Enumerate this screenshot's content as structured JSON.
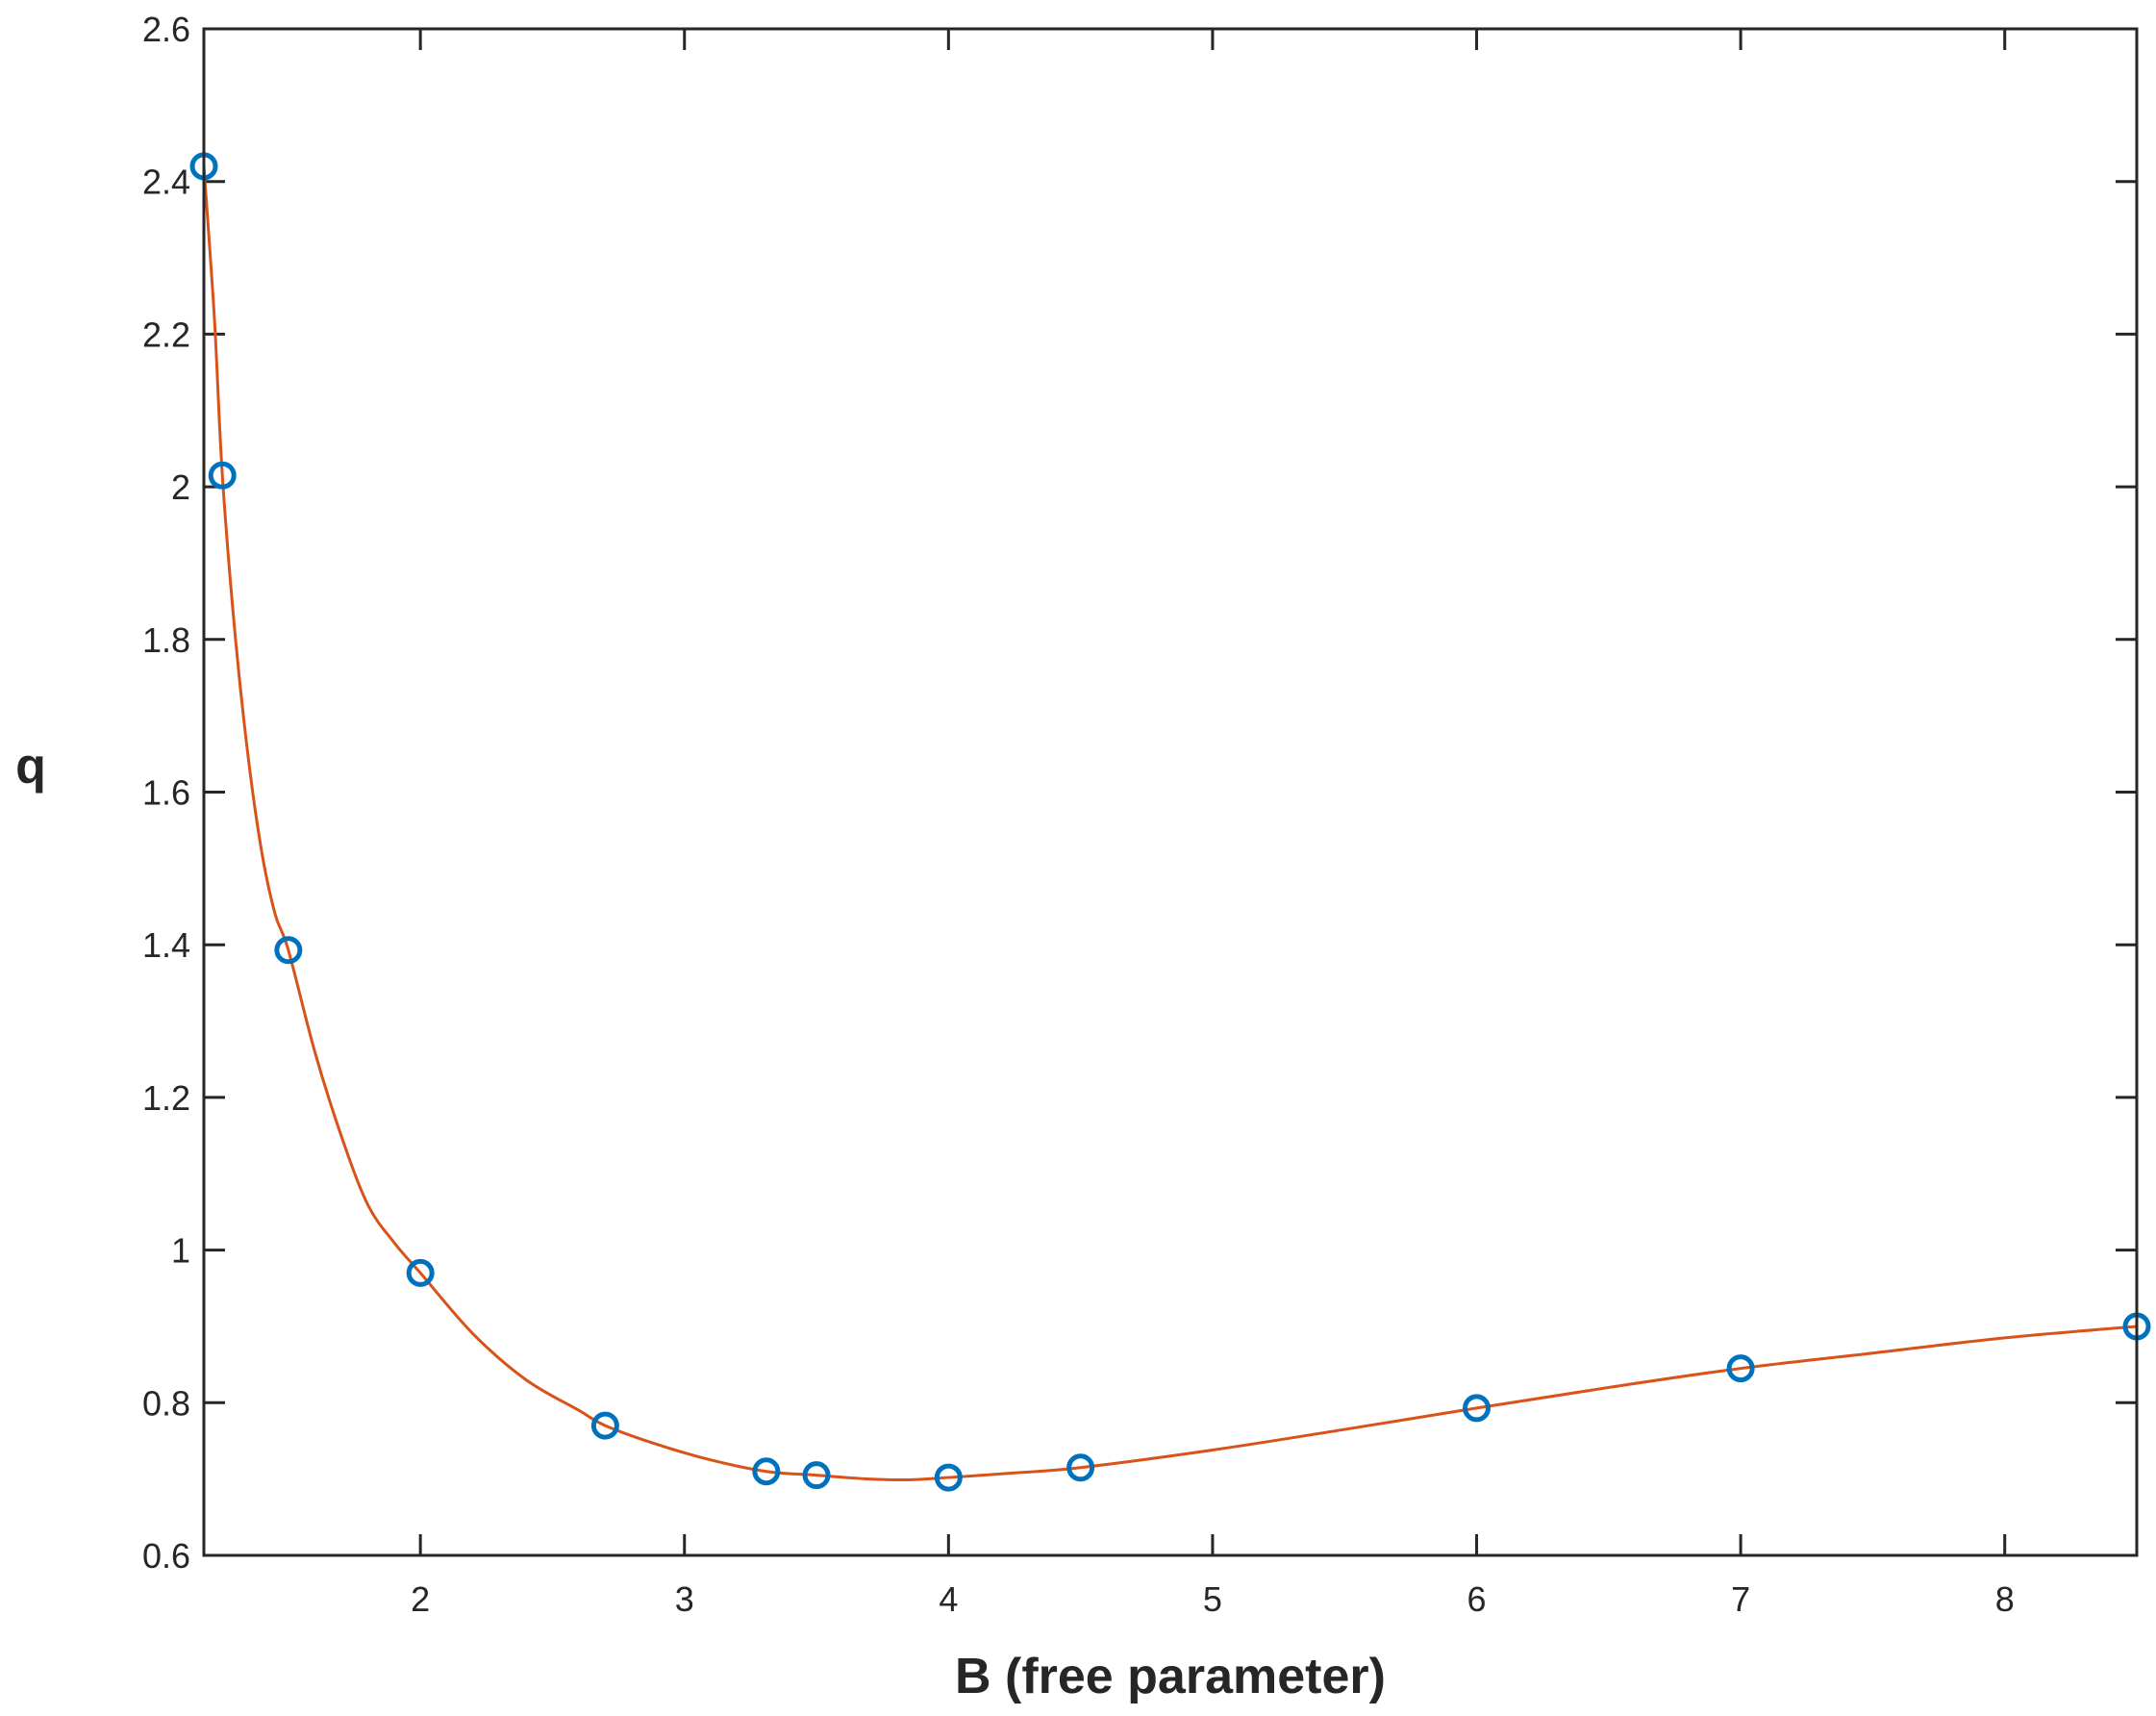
{
  "chart_data": {
    "type": "scatter",
    "title": "",
    "xlabel": "B (free parameter)",
    "ylabel": "q",
    "xlim": [
      1.18,
      8.5
    ],
    "ylim": [
      0.6,
      2.6
    ],
    "xticks": [
      2,
      3,
      4,
      5,
      6,
      7,
      8
    ],
    "yticks": [
      0.6,
      0.8,
      1,
      1.2,
      1.4,
      1.6,
      1.8,
      2,
      2.2,
      2.4,
      2.6
    ],
    "xtick_labels": [
      "2",
      "3",
      "4",
      "5",
      "6",
      "7",
      "8"
    ],
    "ytick_labels": [
      "0.6",
      "0.8",
      "1",
      "1.2",
      "1.4",
      "1.6",
      "1.8",
      "2",
      "2.2",
      "2.4",
      "2.6"
    ],
    "grid": false,
    "series": [
      {
        "kind": "markers",
        "color": "#0072BD",
        "x": [
          1.18,
          1.25,
          1.5,
          2.0,
          2.7,
          3.31,
          3.5,
          4.0,
          4.5,
          6.0,
          7.0,
          8.5
        ],
        "y": [
          2.42,
          2.015,
          1.393,
          0.97,
          0.77,
          0.71,
          0.705,
          0.702,
          0.715,
          0.793,
          0.845,
          0.9
        ]
      },
      {
        "kind": "line",
        "color": "#D95319",
        "x": [
          1.18,
          1.22,
          1.25,
          1.3,
          1.35,
          1.4,
          1.45,
          1.5,
          1.6,
          1.7,
          1.8,
          1.9,
          2.0,
          2.2,
          2.4,
          2.6,
          2.7,
          2.9,
          3.1,
          3.31,
          3.5,
          3.7,
          3.85,
          4.0,
          4.25,
          4.5,
          5.0,
          5.5,
          6.0,
          6.5,
          7.0,
          7.5,
          8.0,
          8.5
        ],
        "y": [
          2.42,
          2.22,
          2.015,
          1.8,
          1.64,
          1.52,
          1.44,
          1.393,
          1.26,
          1.15,
          1.06,
          1.01,
          0.97,
          0.89,
          0.83,
          0.79,
          0.77,
          0.745,
          0.725,
          0.71,
          0.705,
          0.7,
          0.699,
          0.702,
          0.708,
          0.715,
          0.738,
          0.765,
          0.793,
          0.82,
          0.845,
          0.865,
          0.885,
          0.9
        ]
      }
    ]
  }
}
